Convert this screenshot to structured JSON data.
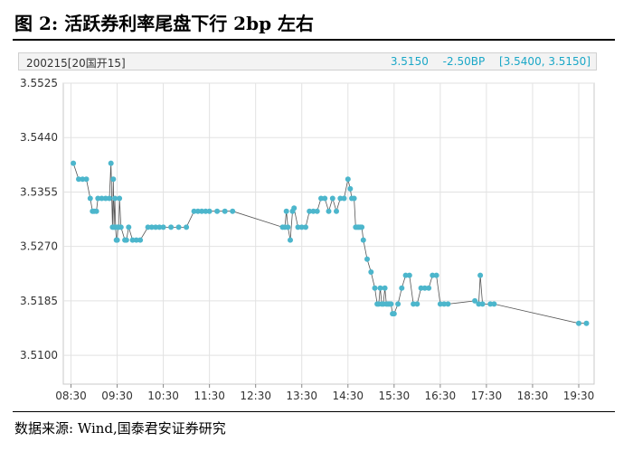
{
  "figure": {
    "title": "图 2:  活跃券利率尾盘下行 2bp 左右",
    "source": "数据来源:  Wind,国泰君安证券研究"
  },
  "header": {
    "bond": "200215[20国开15]",
    "last": "3.5150",
    "change": "-2.50BP",
    "range": "[3.5400, 3.5150]"
  },
  "colors": {
    "line": "#555555",
    "marker": "#4cb6cc",
    "accent": "#1aa7c7"
  },
  "chart_data": {
    "type": "line",
    "title": "",
    "xlabel": "",
    "ylabel": "",
    "x_ticks": [
      "08:30",
      "09:30",
      "10:30",
      "11:30",
      "12:30",
      "13:30",
      "14:30",
      "15:30",
      "16:30",
      "17:30",
      "18:30",
      "19:30"
    ],
    "y_ticks": [
      "3.5525",
      "3.5440",
      "3.5355",
      "3.5270",
      "3.5185",
      "3.5100"
    ],
    "ylim": [
      3.5055,
      3.5525
    ],
    "xlim": [
      "08:20",
      "19:50"
    ],
    "grid": true,
    "series": [
      {
        "x": [
          "08:33",
          "08:40",
          "08:45",
          "08:50",
          "08:55",
          "08:58",
          "09:00",
          "09:03",
          "09:05",
          "09:10",
          "09:15",
          "09:20",
          "09:22",
          "09:24",
          "09:25",
          "09:26",
          "09:27",
          "09:28",
          "09:29",
          "09:30",
          "09:31",
          "09:32",
          "09:33",
          "09:35",
          "09:40",
          "09:42",
          "09:45",
          "09:50",
          "09:55",
          "10:00",
          "10:10",
          "10:15",
          "10:20",
          "10:25",
          "10:30",
          "10:40",
          "10:50",
          "11:00",
          "11:10",
          "11:15",
          "11:20",
          "11:25",
          "11:30",
          "11:40",
          "11:50",
          "12:00",
          "13:05",
          "13:08",
          "13:10",
          "13:12",
          "13:15",
          "13:18",
          "13:20",
          "13:25",
          "13:30",
          "13:35",
          "13:40",
          "13:45",
          "13:50",
          "13:55",
          "14:00",
          "14:05",
          "14:10",
          "14:15",
          "14:20",
          "14:25",
          "14:30",
          "14:33",
          "14:35",
          "14:38",
          "14:40",
          "14:42",
          "14:44",
          "14:46",
          "14:48",
          "14:50",
          "14:55",
          "15:00",
          "15:05",
          "15:08",
          "15:10",
          "15:12",
          "15:14",
          "15:16",
          "15:18",
          "15:20",
          "15:22",
          "15:24",
          "15:26",
          "15:28",
          "15:30",
          "15:35",
          "15:40",
          "15:45",
          "15:50",
          "15:55",
          "16:00",
          "16:05",
          "16:10",
          "16:15",
          "16:20",
          "16:25",
          "16:30",
          "16:35",
          "16:40",
          "17:15",
          "17:20",
          "17:22",
          "17:25",
          "17:35",
          "17:40",
          "19:30",
          "19:40"
        ],
        "values": [
          3.54,
          3.5375,
          3.5375,
          3.5375,
          3.5345,
          3.5325,
          3.5325,
          3.5325,
          3.5345,
          3.5345,
          3.5345,
          3.5345,
          3.54,
          3.53,
          3.5375,
          3.53,
          3.5345,
          3.53,
          3.528,
          3.528,
          3.53,
          3.53,
          3.5345,
          3.53,
          3.528,
          3.528,
          3.53,
          3.528,
          3.528,
          3.528,
          3.53,
          3.53,
          3.53,
          3.53,
          3.53,
          3.53,
          3.53,
          3.53,
          3.5325,
          3.5325,
          3.5325,
          3.5325,
          3.5325,
          3.5325,
          3.5325,
          3.5325,
          3.53,
          3.53,
          3.5325,
          3.53,
          3.528,
          3.5325,
          3.533,
          3.53,
          3.53,
          3.53,
          3.5325,
          3.5325,
          3.5325,
          3.5345,
          3.5345,
          3.5325,
          3.5345,
          3.5325,
          3.5345,
          3.5345,
          3.5375,
          3.536,
          3.5345,
          3.5345,
          3.53,
          3.53,
          3.53,
          3.53,
          3.53,
          3.528,
          3.525,
          3.523,
          3.5205,
          3.518,
          3.518,
          3.5205,
          3.518,
          3.518,
          3.5205,
          3.518,
          3.518,
          3.518,
          3.518,
          3.5165,
          3.5165,
          3.518,
          3.5205,
          3.5225,
          3.5225,
          3.518,
          3.518,
          3.5205,
          3.5205,
          3.5205,
          3.5225,
          3.5225,
          3.518,
          3.518,
          3.518,
          3.5185,
          3.518,
          3.5225,
          3.518,
          3.518,
          3.518,
          3.515,
          3.515
        ]
      }
    ]
  }
}
